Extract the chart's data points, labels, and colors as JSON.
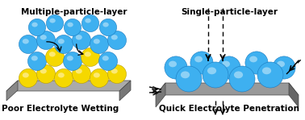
{
  "title_left": "Multiple-particle-layer",
  "title_right": "Single-particle-layer",
  "label_left": "Poor Electrolyte Wetting",
  "label_right": "Quick Electrolyte Penetration",
  "blue_color": "#3EB0F0",
  "blue_dark": "#1a7abf",
  "blue_light": "#aaddf8",
  "yellow_color": "#F5D800",
  "yellow_dark": "#b89e00",
  "yellow_light": "#fff099",
  "platform_top": "#aaaaaa",
  "platform_side_left": "#777777",
  "platform_side_right": "#666666",
  "bg_color": "#FFFFFF",
  "title_fontsize": 7.5,
  "label_fontsize": 7.5,
  "fig_width": 3.78,
  "fig_height": 1.49
}
